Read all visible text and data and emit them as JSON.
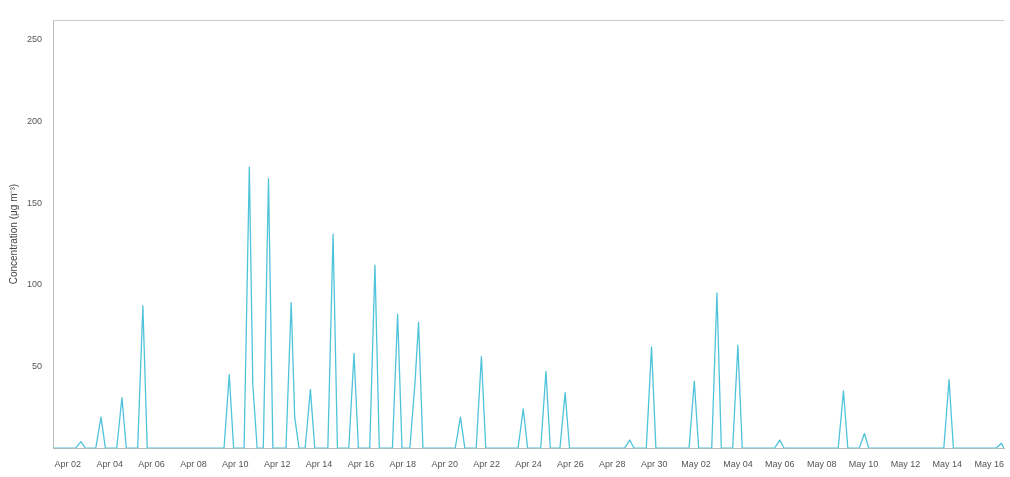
{
  "chart_data": {
    "type": "line",
    "ylabel": "Concentration (μg m⁻³)",
    "xlim": [
      "--04-01T07:00",
      "--05-16T17:00"
    ],
    "ylim": [
      0,
      262
    ],
    "yticks": [
      50,
      100,
      150,
      200,
      250
    ],
    "grid": false,
    "legend": false,
    "marker": "none",
    "line_style": "solid",
    "xticks": [
      {
        "value": "--04-02",
        "label": "Apr 02"
      },
      {
        "value": "--04-04",
        "label": "Apr 04"
      },
      {
        "value": "--04-06",
        "label": "Apr 06"
      },
      {
        "value": "--04-08",
        "label": "Apr 08"
      },
      {
        "value": "--04-10",
        "label": "Apr 10"
      },
      {
        "value": "--04-12",
        "label": "Apr 12"
      },
      {
        "value": "--04-14",
        "label": "Apr 14"
      },
      {
        "value": "--04-16",
        "label": "Apr 16"
      },
      {
        "value": "--04-18",
        "label": "Apr 18"
      },
      {
        "value": "--04-20",
        "label": "Apr 20"
      },
      {
        "value": "--04-22",
        "label": "Apr 22"
      },
      {
        "value": "--04-24",
        "label": "Apr 24"
      },
      {
        "value": "--04-26",
        "label": "Apr 26"
      },
      {
        "value": "--04-28",
        "label": "Apr 28"
      },
      {
        "value": "--04-30",
        "label": "Apr 30"
      },
      {
        "value": "--05-02",
        "label": "May 02"
      },
      {
        "value": "--05-04",
        "label": "May 04"
      },
      {
        "value": "--05-06",
        "label": "May 06"
      },
      {
        "value": "--05-08",
        "label": "May 08"
      },
      {
        "value": "--05-10",
        "label": "May 10"
      },
      {
        "value": "--05-12",
        "label": "May 12"
      },
      {
        "value": "--05-14",
        "label": "May 14"
      },
      {
        "value": "--05-16",
        "label": "May 16"
      }
    ],
    "x": [
      "--04-01T08:00",
      "--04-02T09:00",
      "--04-02T15:00",
      "--04-02T20:00",
      "--04-03T08:00",
      "--04-03T14:00",
      "--04-03T19:00",
      "--04-04T08:00",
      "--04-04T14:00",
      "--04-04T19:00",
      "--04-05T08:00",
      "--04-05T14:00",
      "--04-05T19:00",
      "--04-09T11:00",
      "--04-09T17:00",
      "--04-09T22:00",
      "--04-10T10:00",
      "--04-10T16:00",
      "--04-10T20:00",
      "--04-11T01:00",
      "--04-11T08:00",
      "--04-11T14:00",
      "--04-11T19:00",
      "--04-12T10:00",
      "--04-12T16:00",
      "--04-12T20:00",
      "--04-13T01:00",
      "--04-13T08:00",
      "--04-13T14:00",
      "--04-13T19:00",
      "--04-14T10:00",
      "--04-14T16:00",
      "--04-14T21:00",
      "--04-15T10:00",
      "--04-15T16:00",
      "--04-15T21:00",
      "--04-16T10:00",
      "--04-16T16:00",
      "--04-16T21:00",
      "--04-17T12:00",
      "--04-17T18:00",
      "--04-17T23:00",
      "--04-18T08:00",
      "--04-18T14:00",
      "--04-18T18:00",
      "--04-18T23:00",
      "--04-20T12:00",
      "--04-20T18:00",
      "--04-20T23:00",
      "--04-21T12:00",
      "--04-21T18:00",
      "--04-21T23:00",
      "--04-23T12:00",
      "--04-23T18:00",
      "--04-23T23:00",
      "--04-24T14:00",
      "--04-24T20:00",
      "--04-25T01:00",
      "--04-25T12:00",
      "--04-25T18:00",
      "--04-25T23:00",
      "--04-28T14:00",
      "--04-28T20:00",
      "--04-29T01:00",
      "--04-29T15:00",
      "--04-29T21:00",
      "--04-30T02:00",
      "--05-01T16:00",
      "--05-01T22:00",
      "--05-02T03:00",
      "--05-02T18:00",
      "--05-03T00:00",
      "--05-03T05:00",
      "--05-03T18:00",
      "--05-04T00:00",
      "--05-04T05:00",
      "--05-05T18:00",
      "--05-06T00:00",
      "--05-06T05:00",
      "--05-08T19:00",
      "--05-09T01:00",
      "--05-09T06:00",
      "--05-09T19:00",
      "--05-10T01:00",
      "--05-10T06:00",
      "--05-13T20:00",
      "--05-14T02:00",
      "--05-14T07:00",
      "--05-16T08:00",
      "--05-16T14:00",
      "--05-16T17:00"
    ],
    "series": [
      {
        "color": "#4fc3d9",
        "values": [
          0,
          0,
          4,
          0,
          0,
          19,
          0,
          0,
          31,
          0,
          0,
          87,
          0,
          0,
          45,
          0,
          0,
          172,
          39,
          0,
          0,
          165,
          0,
          0,
          89,
          19,
          0,
          0,
          36,
          0,
          0,
          131,
          0,
          0,
          58,
          0,
          0,
          112,
          0,
          0,
          82,
          0,
          0,
          41,
          77,
          0,
          0,
          19,
          0,
          0,
          56,
          0,
          0,
          24,
          0,
          0,
          47,
          0,
          0,
          34,
          0,
          0,
          5,
          0,
          0,
          62,
          0,
          0,
          41,
          0,
          0,
          95,
          0,
          0,
          63,
          0,
          0,
          5,
          0,
          0,
          35,
          0,
          0,
          9,
          0,
          0,
          42,
          0,
          0,
          3,
          0
        ]
      }
    ]
  }
}
